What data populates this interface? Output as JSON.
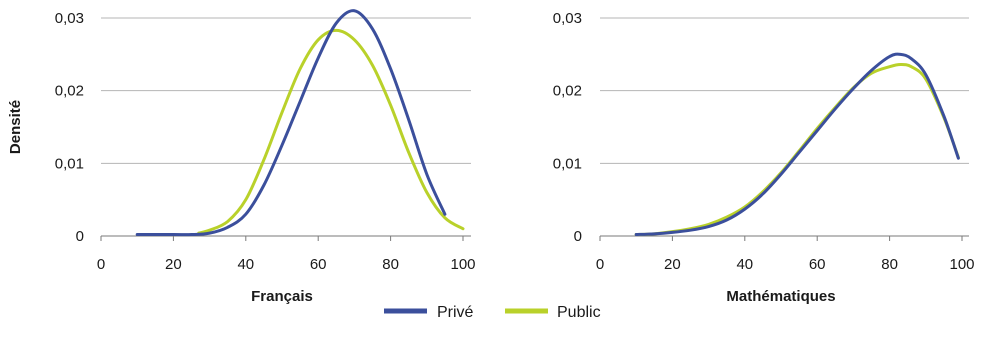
{
  "colors": {
    "prive": "#3b4f9c",
    "public": "#b9d12a",
    "grid": "#b5b5b5"
  },
  "legend": {
    "prive": "Privé",
    "public": "Public"
  },
  "chart_data": [
    {
      "type": "line",
      "title": "",
      "xlabel": "Français",
      "ylabel": "Densité",
      "xlim": [
        0,
        100
      ],
      "ylim": [
        0,
        0.03
      ],
      "x_ticks": [
        0,
        20,
        40,
        60,
        80,
        100
      ],
      "y_ticks": [
        0,
        0.01,
        0.02,
        0.03
      ],
      "x_tick_labels": [
        "0",
        "20",
        "40",
        "60",
        "80",
        "100"
      ],
      "y_tick_labels": [
        "0",
        "0,01",
        "0,02",
        "0,03"
      ],
      "grid": "horizontal",
      "series": [
        {
          "name": "Privé",
          "color": "#3b4f9c",
          "x": [
            10,
            20,
            25,
            30,
            35,
            40,
            45,
            50,
            55,
            60,
            65,
            70,
            75,
            80,
            85,
            90,
            95
          ],
          "y": [
            0.0002,
            0.0002,
            0.0002,
            0.0004,
            0.0012,
            0.003,
            0.007,
            0.0125,
            0.0185,
            0.0245,
            0.0293,
            0.031,
            0.0285,
            0.023,
            0.016,
            0.0085,
            0.003
          ]
        },
        {
          "name": "Public",
          "color": "#b9d12a",
          "x": [
            27,
            30,
            35,
            40,
            45,
            50,
            55,
            60,
            65,
            70,
            75,
            80,
            85,
            90,
            95,
            100
          ],
          "y": [
            0.0004,
            0.0008,
            0.002,
            0.005,
            0.0105,
            0.017,
            0.023,
            0.027,
            0.0283,
            0.027,
            0.0235,
            0.018,
            0.0115,
            0.006,
            0.0025,
            0.001
          ]
        }
      ]
    },
    {
      "type": "line",
      "title": "",
      "xlabel": "Mathématiques",
      "ylabel": "",
      "xlim": [
        0,
        100
      ],
      "ylim": [
        0,
        0.03
      ],
      "x_ticks": [
        0,
        20,
        40,
        60,
        80,
        100
      ],
      "y_ticks": [
        0,
        0.01,
        0.02,
        0.03
      ],
      "x_tick_labels": [
        "0",
        "20",
        "40",
        "60",
        "80",
        "100"
      ],
      "y_tick_labels": [
        "0",
        "0,01",
        "0,02",
        "0,03"
      ],
      "grid": "horizontal",
      "series": [
        {
          "name": "Privé",
          "color": "#3b4f9c",
          "x": [
            10,
            15,
            20,
            25,
            30,
            35,
            40,
            45,
            50,
            55,
            60,
            65,
            70,
            75,
            80,
            83,
            86,
            90,
            95,
            99
          ],
          "y": [
            0.0002,
            0.0003,
            0.0005,
            0.0008,
            0.0013,
            0.0022,
            0.0037,
            0.0058,
            0.0085,
            0.0115,
            0.0145,
            0.0175,
            0.0203,
            0.0228,
            0.0247,
            0.025,
            0.0244,
            0.0222,
            0.0165,
            0.0107
          ]
        },
        {
          "name": "Public",
          "color": "#b9d12a",
          "x": [
            10,
            15,
            20,
            25,
            30,
            35,
            40,
            45,
            50,
            55,
            60,
            65,
            70,
            75,
            80,
            83,
            86,
            90,
            95,
            99
          ],
          "y": [
            0.0002,
            0.0003,
            0.0006,
            0.001,
            0.0016,
            0.0026,
            0.004,
            0.0061,
            0.0087,
            0.0117,
            0.0148,
            0.0177,
            0.0204,
            0.0224,
            0.0233,
            0.0236,
            0.0233,
            0.0216,
            0.0163,
            0.0108
          ]
        }
      ]
    }
  ]
}
